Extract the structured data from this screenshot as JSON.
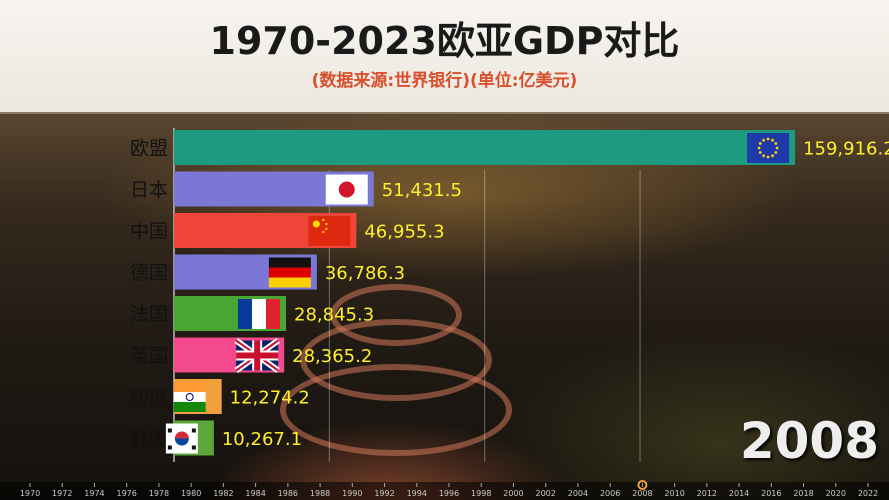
{
  "header": {
    "title": "1970-2023欧亚GDP对比",
    "subtitle": "(数据来源:世界银行)(单位:亿美元)"
  },
  "year_display": "2008",
  "chart_data": {
    "type": "bar",
    "orientation": "horizontal",
    "title": "1970-2023欧亚GDP对比",
    "subtitle": "(数据来源:世界银行)(单位:亿美元)",
    "categories": [
      "欧盟",
      "日本",
      "中国",
      "德国",
      "法国",
      "英国",
      "印度",
      "韩国"
    ],
    "values": [
      159916.2,
      51431.5,
      46955.3,
      36786.3,
      28845.3,
      28365.2,
      12274.2,
      10267.1
    ],
    "value_labels": [
      "159,916.2",
      "51,431.5",
      "46,955.3",
      "36,786.3",
      "28,845.3",
      "28,365.2",
      "12,274.2",
      "10,267.1"
    ],
    "colors": [
      "#1e9a80",
      "#7a78d4",
      "#f0463a",
      "#7a78d4",
      "#4aa634",
      "#f24a8c",
      "#f2a03a",
      "#5ca63a"
    ],
    "flags": [
      "eu-flag-icon",
      "japan-flag-icon",
      "china-flag-icon",
      "germany-flag-icon",
      "france-flag-icon",
      "uk-flag-icon",
      "india-flag-icon",
      "korea-flag-icon"
    ],
    "xlim": [
      0,
      172000
    ],
    "timeline": {
      "ticks": [
        "1970",
        "1972",
        "1974",
        "1976",
        "1978",
        "1980",
        "1982",
        "1984",
        "1986",
        "1988",
        "1990",
        "1992",
        "1994",
        "1996",
        "1998",
        "2000",
        "2002",
        "2004",
        "2006",
        "2008",
        "2010",
        "2012",
        "2014",
        "2016",
        "2018",
        "2020",
        "2022"
      ],
      "current": "2008"
    }
  }
}
